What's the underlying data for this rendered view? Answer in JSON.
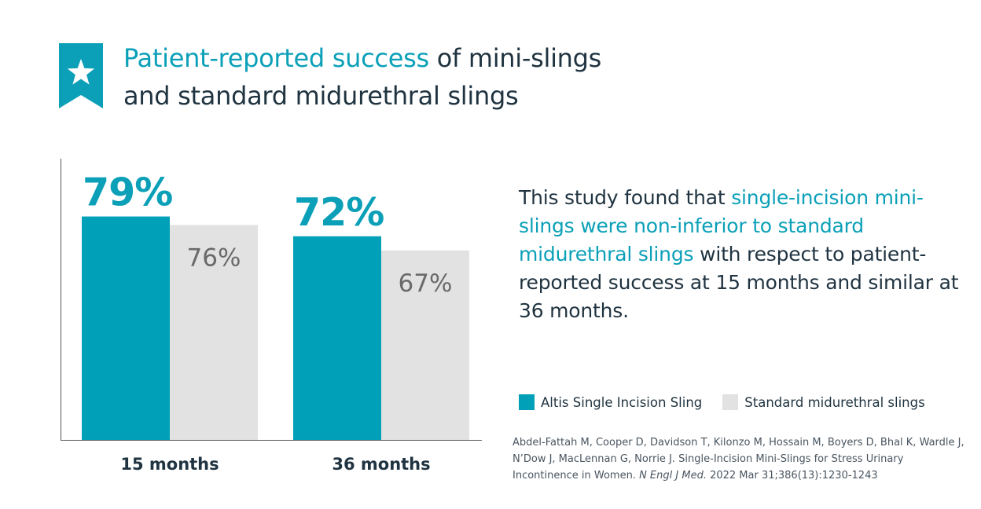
{
  "header": {
    "title_highlight": "Patient-reported success",
    "title_rest_line1": " of mini-slings",
    "title_line2": "and standard midurethral slings",
    "icon": "star-ribbon-icon",
    "accent_color": "#0ba0b8"
  },
  "chart_data": {
    "type": "bar",
    "categories": [
      "15 months",
      "36 months"
    ],
    "series": [
      {
        "name": "Altis Single Incision Sling",
        "values": [
          79,
          72
        ],
        "labels": [
          "79%",
          "72%"
        ],
        "color": "#00a0b8"
      },
      {
        "name": "Standard midurethral slings",
        "values": [
          76,
          67
        ],
        "labels": [
          "76%",
          "67%"
        ],
        "color": "#e2e2e2"
      }
    ],
    "ylim": [
      0,
      100
    ],
    "grid": false,
    "legend_position": "bottom-right"
  },
  "description": {
    "part1": "This study found that ",
    "highlight": "single-incision mini-slings were non-inferior to standard midurethral slings",
    "part2": " with respect to patient-reported success at 15 months and similar at 36 months."
  },
  "legend": {
    "items": [
      {
        "label": "Altis Single Incision Sling",
        "color": "#00a0b8"
      },
      {
        "label": "Standard midurethral slings",
        "color": "#e2e2e2"
      }
    ]
  },
  "citation": {
    "text": "Abdel-Fattah M, Cooper D, Davidson T, Kilonzo M, Hossain M, Boyers D, Bhal K, Wardle J, N’Dow J, MacLennan G, Norrie J. Single-Incision Mini-Slings for Stress Urinary Incontinence in Women. ",
    "journal": "N Engl J Med.",
    "details": " 2022 Mar 31;386(13):1230-1243"
  }
}
